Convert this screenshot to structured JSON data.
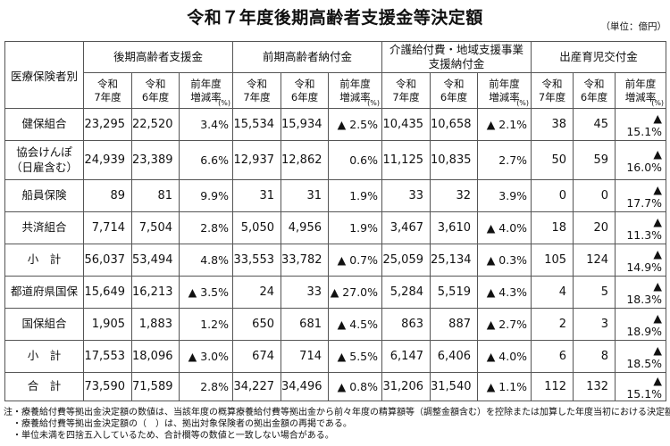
{
  "page": {
    "title": "令和７年度後期高齢者支援金等決定額",
    "unit_note": "（単位：億円）"
  },
  "table": {
    "corner_header": "医療保険者別",
    "groups": [
      {
        "label": "後期高齢者支援金"
      },
      {
        "label": "前期高齢者納付金"
      },
      {
        "label": "介護給付費・地域支援事業\n支援納付金"
      },
      {
        "label": "出産育児交付金"
      }
    ],
    "subcols": {
      "y7": "令和\n7年度",
      "y6": "令和\n6年度",
      "rate": "前年度\n増減率",
      "rate_unit": "(%)"
    },
    "rows": [
      {
        "name": "健保組合",
        "values": [
          "23,295",
          "22,520",
          "3.4%",
          "15,534",
          "15,934",
          "▲ 2.5%",
          "10,435",
          "10,658",
          "▲ 2.1%",
          "38",
          "45",
          "▲ 15.1%"
        ]
      },
      {
        "name": "協会けんぽ\n（日雇含む）",
        "values": [
          "24,939",
          "23,389",
          "6.6%",
          "12,937",
          "12,862",
          "0.6%",
          "11,125",
          "10,835",
          "2.7%",
          "50",
          "59",
          "▲ 16.0%"
        ]
      },
      {
        "name": "船員保険",
        "values": [
          "89",
          "81",
          "9.9%",
          "31",
          "31",
          "1.9%",
          "33",
          "32",
          "3.9%",
          "0",
          "0",
          "▲ 17.7%"
        ]
      },
      {
        "name": "共済組合",
        "values": [
          "7,714",
          "7,504",
          "2.8%",
          "5,050",
          "4,956",
          "1.9%",
          "3,467",
          "3,610",
          "▲ 4.0%",
          "18",
          "20",
          "▲ 11.3%"
        ]
      },
      {
        "name": "小　計",
        "values": [
          "56,037",
          "53,494",
          "4.8%",
          "33,553",
          "33,782",
          "▲ 0.7%",
          "25,059",
          "25,134",
          "▲ 0.3%",
          "105",
          "124",
          "▲ 14.9%"
        ]
      },
      {
        "name": "都道府県国保",
        "values": [
          "15,649",
          "16,213",
          "▲ 3.5%",
          "24",
          "33",
          "▲ 27.0%",
          "5,284",
          "5,519",
          "▲ 4.3%",
          "4",
          "5",
          "▲ 18.3%"
        ]
      },
      {
        "name": "国保組合",
        "values": [
          "1,905",
          "1,883",
          "1.2%",
          "650",
          "681",
          "▲ 4.5%",
          "863",
          "887",
          "▲ 2.7%",
          "2",
          "3",
          "▲ 18.9%"
        ]
      },
      {
        "name": "小　計",
        "values": [
          "17,553",
          "18,096",
          "▲ 3.0%",
          "674",
          "714",
          "▲ 5.5%",
          "6,147",
          "6,406",
          "▲ 4.0%",
          "6",
          "8",
          "▲ 18.5%"
        ]
      },
      {
        "name": "合　計",
        "values": [
          "73,590",
          "71,589",
          "2.8%",
          "34,227",
          "34,496",
          "▲ 0.8%",
          "31,206",
          "31,540",
          "▲ 1.1%",
          "112",
          "132",
          "▲ 15.1%"
        ]
      }
    ]
  },
  "footnotes": [
    "注・療養給付費等拠出金決定額の数値は、当該年度の概算療養給付費等拠出金から前々年度の精算額等（調整金額含む）を控除または加算した年度当初における決定額である。",
    "・療養給付費等拠出金決定額の（　）は、拠出対象保険者の拠出金額の再掲である。",
    "・単位未満を四捨五入しているため、合計欄等の数値と一致しない場合がある。"
  ]
}
